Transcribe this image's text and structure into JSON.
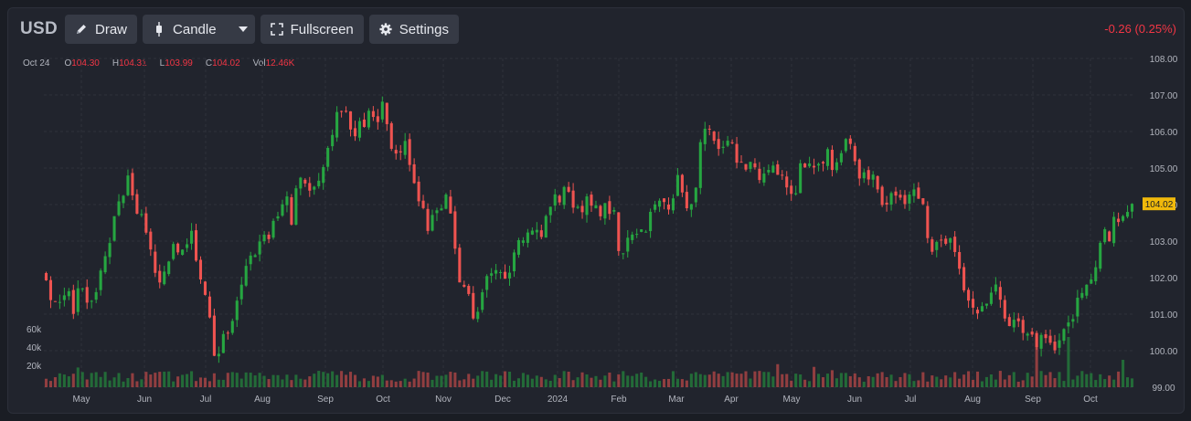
{
  "toolbar": {
    "symbol": "USD",
    "draw_label": "Draw",
    "candle_label": "Candle",
    "fullscreen_label": "Fullscreen",
    "settings_label": "Settings"
  },
  "change_text": "-0.26 (0.25%)",
  "legend": {
    "date": "Oct 24",
    "o_label": "O",
    "o_value": "104.30",
    "h_label": "H",
    "h_value": "104.31",
    "l_label": "L",
    "l_value": "103.99",
    "c_label": "C",
    "c_value": "104.02",
    "vol_label": "Vol",
    "vol_value": "12.46K"
  },
  "colors": {
    "up": "#26a69a",
    "up_green": "#26a641",
    "down": "#ef5350",
    "grid": "#2e323c",
    "axis_text": "#b2b5be",
    "price_tag": "#f0b90b"
  },
  "icons": [
    "pencil-icon",
    "candlestick-icon",
    "chevron-down-icon",
    "fullscreen-icon",
    "gear-icon"
  ],
  "chart_data": {
    "type": "candlestick",
    "y_ticks": [
      "108.00",
      "107.00",
      "106.00",
      "105.00",
      "104.00",
      "103.00",
      "102.00",
      "101.00",
      "100.00",
      "99.00"
    ],
    "ylim": [
      99,
      108
    ],
    "volume_ticks": [
      "60k",
      "40k",
      "20k"
    ],
    "x_ticks": [
      "May",
      "Jun",
      "Jul",
      "Aug",
      "Sep",
      "Oct",
      "Nov",
      "Dec",
      "2024",
      "Feb",
      "Mar",
      "Apr",
      "May",
      "Jun",
      "Jul",
      "Aug",
      "Sep",
      "Oct"
    ],
    "last_price": "104.02",
    "close_path": [
      [
        0,
        102.1
      ],
      [
        5,
        101.0
      ],
      [
        9,
        101.6
      ],
      [
        14,
        101.3
      ],
      [
        19,
        101.7
      ],
      [
        24,
        101.0
      ],
      [
        29,
        101.9
      ],
      [
        34,
        101.3
      ],
      [
        41,
        101.3
      ],
      [
        46,
        101.9
      ],
      [
        50,
        102.6
      ],
      [
        55,
        103.0
      ],
      [
        60,
        103.8
      ],
      [
        65,
        104.2
      ],
      [
        70,
        104.8
      ],
      [
        75,
        104.2
      ],
      [
        79,
        103.5
      ],
      [
        84,
        103.7
      ],
      [
        90,
        102.8
      ],
      [
        95,
        101.8
      ],
      [
        98,
        101.8
      ],
      [
        103,
        102.2
      ],
      [
        107,
        102.5
      ],
      [
        112,
        103.0
      ],
      [
        115,
        102.2
      ],
      [
        118,
        102.9
      ],
      [
        123,
        103.0
      ],
      [
        126,
        103.2
      ],
      [
        130,
        102.4
      ],
      [
        134,
        102.0
      ],
      [
        138,
        101.5
      ],
      [
        143,
        100.6
      ],
      [
        147,
        99.3
      ],
      [
        150,
        100.0
      ],
      [
        154,
        100.6
      ],
      [
        157,
        100.4
      ],
      [
        161,
        100.7
      ],
      [
        165,
        101.6
      ],
      [
        170,
        102.0
      ],
      [
        175,
        102.6
      ],
      [
        180,
        102.6
      ],
      [
        184,
        103.1
      ],
      [
        190,
        103.0
      ],
      [
        196,
        103.6
      ],
      [
        202,
        103.8
      ],
      [
        207,
        104.2
      ],
      [
        212,
        103.4
      ],
      [
        215,
        104.5
      ],
      [
        218,
        104.8
      ],
      [
        223,
        104.7
      ],
      [
        226,
        104.4
      ],
      [
        231,
        104.5
      ],
      [
        237,
        104.8
      ],
      [
        241,
        105.2
      ],
      [
        245,
        105.8
      ],
      [
        251,
        106.4
      ],
      [
        256,
        106.6
      ],
      [
        261,
        106.3
      ],
      [
        265,
        105.6
      ],
      [
        270,
        106.3
      ],
      [
        275,
        106.1
      ],
      [
        280,
        106.7
      ],
      [
        284,
        105.9
      ],
      [
        289,
        106.8
      ],
      [
        293,
        106.6
      ],
      [
        297,
        105.4
      ],
      [
        300,
        105.7
      ],
      [
        303,
        105.3
      ],
      [
        306,
        105.5
      ],
      [
        310,
        105.8
      ],
      [
        314,
        104.9
      ],
      [
        318,
        104.4
      ],
      [
        322,
        104.2
      ],
      [
        327,
        103.6
      ],
      [
        331,
        103.3
      ],
      [
        334,
        103.9
      ],
      [
        339,
        104.0
      ],
      [
        344,
        104.1
      ],
      [
        348,
        104.1
      ],
      [
        351,
        103.3
      ],
      [
        355,
        102.1
      ],
      [
        360,
        101.8
      ],
      [
        364,
        101.6
      ],
      [
        367,
        101.2
      ],
      [
        371,
        100.7
      ],
      [
        375,
        101.3
      ],
      [
        380,
        101.9
      ],
      [
        385,
        102.0
      ],
      [
        390,
        102.1
      ],
      [
        395,
        102.0
      ],
      [
        399,
        102.2
      ],
      [
        404,
        102.8
      ],
      [
        409,
        103.3
      ],
      [
        414,
        103.1
      ],
      [
        419,
        103.4
      ],
      [
        424,
        103.2
      ],
      [
        428,
        103.1
      ],
      [
        433,
        103.9
      ],
      [
        438,
        104.2
      ],
      [
        442,
        104.0
      ],
      [
        446,
        104.6
      ],
      [
        451,
        104.2
      ],
      [
        456,
        104.0
      ],
      [
        461,
        103.9
      ],
      [
        466,
        104.1
      ],
      [
        471,
        103.9
      ],
      [
        476,
        103.8
      ],
      [
        481,
        103.9
      ],
      [
        485,
        103.9
      ],
      [
        490,
        103.7
      ],
      [
        494,
        102.7
      ],
      [
        498,
        102.6
      ],
      [
        502,
        103.2
      ],
      [
        507,
        103.3
      ],
      [
        512,
        103.3
      ],
      [
        516,
        103.3
      ],
      [
        520,
        103.6
      ],
      [
        524,
        103.9
      ],
      [
        528,
        104.0
      ],
      [
        532,
        104.1
      ],
      [
        536,
        104.0
      ],
      [
        540,
        104.1
      ],
      [
        543,
        104.7
      ],
      [
        548,
        104.6
      ],
      [
        553,
        103.8
      ],
      [
        558,
        103.9
      ],
      [
        562,
        105.0
      ],
      [
        566,
        105.9
      ],
      [
        571,
        106.0
      ],
      [
        576,
        105.6
      ],
      [
        581,
        105.4
      ],
      [
        587,
        105.8
      ],
      [
        590,
        105.9
      ],
      [
        596,
        105.0
      ],
      [
        600,
        105.2
      ],
      [
        605,
        105.0
      ],
      [
        609,
        105.3
      ],
      [
        614,
        104.5
      ],
      [
        618,
        104.9
      ],
      [
        623,
        104.9
      ],
      [
        628,
        105.0
      ],
      [
        633,
        104.8
      ],
      [
        638,
        104.6
      ],
      [
        641,
        104.3
      ],
      [
        643,
        104.4
      ],
      [
        645,
        104.0
      ],
      [
        650,
        105.0
      ],
      [
        654,
        104.8
      ],
      [
        659,
        105.1
      ],
      [
        664,
        104.8
      ],
      [
        670,
        105.2
      ],
      [
        674,
        105.5
      ],
      [
        679,
        105.0
      ],
      [
        685,
        105.3
      ],
      [
        690,
        105.7
      ],
      [
        694,
        105.5
      ],
      [
        699,
        105.1
      ],
      [
        703,
        104.7
      ],
      [
        707,
        105.0
      ],
      [
        711,
        104.7
      ],
      [
        715,
        104.8
      ],
      [
        720,
        104.0
      ],
      [
        724,
        103.9
      ],
      [
        728,
        104.2
      ],
      [
        733,
        104.3
      ],
      [
        737,
        104.1
      ],
      [
        742,
        104.2
      ],
      [
        746,
        104.4
      ],
      [
        750,
        104.4
      ],
      [
        754,
        104.2
      ],
      [
        758,
        103.8
      ],
      [
        762,
        102.8
      ],
      [
        766,
        102.8
      ],
      [
        770,
        103.0
      ],
      [
        775,
        103.1
      ],
      [
        780,
        103.0
      ],
      [
        784,
        102.6
      ],
      [
        788,
        102.1
      ],
      [
        792,
        101.5
      ],
      [
        796,
        101.3
      ],
      [
        800,
        101.0
      ],
      [
        804,
        101.2
      ],
      [
        809,
        101.1
      ],
      [
        814,
        101.4
      ],
      [
        818,
        101.7
      ],
      [
        823,
        101.6
      ],
      [
        828,
        100.9
      ],
      [
        832,
        100.8
      ],
      [
        837,
        101.1
      ],
      [
        841,
        100.8
      ],
      [
        845,
        100.5
      ],
      [
        850,
        100.3
      ],
      [
        855,
        100.2
      ],
      [
        860,
        100.7
      ],
      [
        864,
        100.3
      ],
      [
        869,
        100.0
      ],
      [
        873,
        100.3
      ],
      [
        877,
        100.3
      ],
      [
        882,
        100.8
      ],
      [
        886,
        100.8
      ],
      [
        891,
        101.5
      ],
      [
        896,
        101.7
      ],
      [
        900,
        102.0
      ],
      [
        905,
        102.3
      ],
      [
        909,
        102.8
      ],
      [
        914,
        103.2
      ],
      [
        918,
        103.1
      ],
      [
        922,
        103.6
      ],
      [
        926,
        103.5
      ],
      [
        930,
        103.9
      ],
      [
        934,
        103.9
      ],
      [
        937,
        104.02
      ]
    ]
  }
}
